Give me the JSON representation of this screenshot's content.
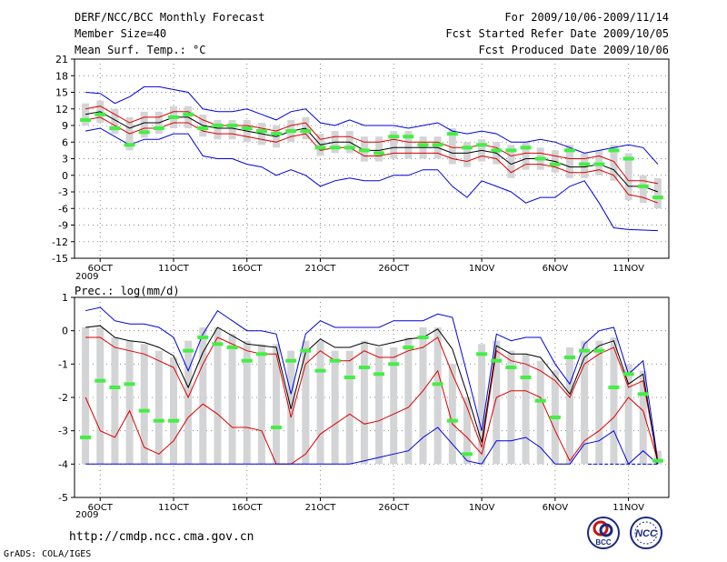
{
  "header": {
    "title": "DERF/NCC/BCC Monthly Forecast",
    "member_size": "Member Size=40",
    "variable": "Mean Surf. Temp.: °C",
    "forecast_period": "For 2009/10/06-2009/11/14",
    "started_refer": "Fcst Started Refer Date 2009/10/05",
    "produced": "Fcst Produced Date 2009/10/06"
  },
  "footer": {
    "url": "http://cmdp.ncc.cma.gov.cn",
    "credit": "GrADS: COLA/IGES",
    "logo_bcc": "BCC",
    "logo_ncc": "NCC"
  },
  "colors": {
    "box": "#d3d4d6",
    "median": "#44ee44",
    "mean": "#000000",
    "spread": "#dd0000",
    "extreme": "#0000dd",
    "grid": "#888888"
  },
  "chart_data": [
    {
      "type": "box",
      "title": "Mean Surf. Temp.: °C",
      "x_labels": [
        "6OCT",
        "11OCT",
        "16OCT",
        "21OCT",
        "26OCT",
        "1NOV",
        "6NOV",
        "11NOV"
      ],
      "x_label_days": [
        1,
        6,
        11,
        16,
        21,
        27,
        32,
        37
      ],
      "x_year_label": "2009",
      "ylim": [
        -15,
        21
      ],
      "y_ticks": [
        -15,
        -12,
        -9,
        -6,
        -3,
        0,
        3,
        6,
        9,
        12,
        15,
        18,
        21
      ],
      "days": 40,
      "series": [
        {
          "name": "max",
          "values": [
            15,
            14.8,
            13,
            14.2,
            16,
            16,
            15.5,
            15,
            12,
            11.5,
            11.5,
            12,
            11,
            10,
            11.5,
            12,
            9.5,
            9,
            10,
            9,
            9,
            9,
            8.5,
            9,
            9.5,
            8,
            7.5,
            8,
            7.5,
            6,
            6,
            6.5,
            6,
            5,
            4,
            4.5,
            5,
            5.5,
            5,
            2
          ]
        },
        {
          "name": "p_high",
          "values": [
            12,
            12.5,
            11,
            9.5,
            10.5,
            10.5,
            11.5,
            11.5,
            10,
            9,
            9,
            9,
            8.5,
            8,
            9,
            9.5,
            6.5,
            7,
            7,
            6,
            6,
            6.5,
            6,
            6,
            6,
            5,
            5,
            5.5,
            5,
            3.5,
            4,
            4,
            3.5,
            3,
            3,
            3.5,
            2.5,
            -1,
            -1,
            -1.5
          ]
        },
        {
          "name": "mean",
          "values": [
            11,
            11.5,
            10,
            8.5,
            9.5,
            9.5,
            10.5,
            10.5,
            9,
            8.5,
            8.5,
            8,
            7.5,
            7,
            8,
            8.5,
            5.5,
            6,
            6,
            4.5,
            4.5,
            5,
            5,
            5,
            5,
            4,
            4,
            4.5,
            4,
            2,
            3,
            3,
            2.5,
            1.5,
            1.5,
            2,
            1,
            -2,
            -2,
            -3
          ]
        },
        {
          "name": "p_low",
          "values": [
            10,
            10.5,
            9,
            7.5,
            8.5,
            8.5,
            9.5,
            9.5,
            8,
            7.5,
            7.5,
            7,
            6.5,
            6,
            7,
            7.5,
            4.5,
            5,
            5,
            3.5,
            3.5,
            4,
            4,
            4,
            4,
            3,
            2.5,
            3.5,
            3,
            0.5,
            2,
            2,
            1.5,
            0.5,
            0.5,
            1,
            0,
            -3.5,
            -4,
            -5
          ]
        },
        {
          "name": "min",
          "values": [
            8,
            8.5,
            7,
            5.5,
            6.5,
            6.5,
            7.5,
            7.5,
            3.5,
            3,
            3,
            2,
            1.5,
            0,
            1,
            0,
            -2,
            -1,
            -0.5,
            -1,
            -1,
            0,
            0,
            1,
            1,
            -2,
            -4,
            -1,
            -2,
            -3,
            -5,
            -4,
            -4,
            -2,
            -1,
            -5,
            -9.5,
            -9.8,
            -9.9,
            -10
          ]
        },
        {
          "name": "median",
          "values": [
            10,
            11,
            8.5,
            5.5,
            7.8,
            8.5,
            10.5,
            11,
            8.5,
            9,
            9,
            8.5,
            8,
            7.5,
            8,
            8,
            5,
            5,
            5,
            4.5,
            4,
            7,
            7,
            5.5,
            5.5,
            7.5,
            5,
            5.5,
            4.5,
            4.5,
            5,
            3,
            2,
            4.5,
            2,
            2,
            4.5,
            3,
            -2,
            -4
          ]
        }
      ]
    },
    {
      "type": "box",
      "title": "Prec.: log(mm/d)",
      "x_labels": [
        "6OCT",
        "11OCT",
        "16OCT",
        "21OCT",
        "26OCT",
        "1NOV",
        "6NOV",
        "11NOV"
      ],
      "x_label_days": [
        1,
        6,
        11,
        16,
        21,
        27,
        32,
        37
      ],
      "x_year_label": "2009",
      "ylim": [
        -5,
        1
      ],
      "y_ticks": [
        -5,
        -4,
        -3,
        -2,
        -1,
        0,
        1
      ],
      "days": 40,
      "series": [
        {
          "name": "max",
          "values": [
            0.6,
            0.7,
            0.3,
            0.2,
            0.2,
            0.1,
            -0.2,
            -1.2,
            -0.1,
            0.6,
            0.3,
            0.0,
            0.0,
            -0.1,
            -1.9,
            -0.1,
            0.3,
            0.1,
            0.1,
            0.1,
            0.1,
            0.3,
            0.3,
            0.3,
            0.5,
            0.4,
            -1.3,
            -3.0,
            -0.1,
            -0.3,
            -0.2,
            -0.2,
            -1.0,
            -1.6,
            -0.4,
            0.0,
            0.1,
            -1.3,
            -0.9,
            -3.9
          ]
        },
        {
          "name": "p_high",
          "values": [
            -0.2,
            -0.2,
            -0.5,
            -0.6,
            -0.7,
            -0.9,
            -1.1,
            -2.0,
            -1.0,
            -0.2,
            -0.4,
            -0.6,
            -0.7,
            -0.7,
            -2.6,
            -1.0,
            -0.6,
            -0.9,
            -0.9,
            -0.6,
            -0.8,
            -0.8,
            -0.6,
            -0.5,
            -0.2,
            -1.3,
            -2.3,
            -3.5,
            -0.6,
            -0.9,
            -1.0,
            -1.2,
            -1.5,
            -2.0,
            -1.0,
            -0.7,
            -0.5,
            -1.7,
            -1.5,
            -3.9
          ]
        },
        {
          "name": "p_low",
          "values": [
            -2.0,
            -3.0,
            -3.2,
            -2.4,
            -3.5,
            -3.7,
            -3.3,
            -2.6,
            -2.2,
            -2.5,
            -2.9,
            -2.9,
            -3.0,
            -4.0,
            -4.0,
            -3.7,
            -3.1,
            -2.8,
            -2.5,
            -2.8,
            -2.7,
            -2.5,
            -2.3,
            -1.8,
            -1.2,
            -2.8,
            -3.2,
            -3.7,
            -2.0,
            -1.8,
            -1.8,
            -2.0,
            -3.0,
            -3.9,
            -3.3,
            -3.0,
            -2.6,
            -2.0,
            -2.4,
            -3.9
          ]
        },
        {
          "name": "min",
          "values": [
            -4,
            -4,
            -4,
            -4,
            -4,
            -4,
            -4,
            -4,
            -4,
            -4,
            -4,
            -4,
            -4,
            -4,
            -4,
            -4,
            -4,
            -4,
            -4,
            -3.9,
            -3.8,
            -3.7,
            -3.6,
            -3.2,
            -2.9,
            -3.4,
            -3.9,
            -4,
            -3.3,
            -3.3,
            -3.2,
            -3.5,
            -4,
            -4,
            -3.4,
            -3.3,
            -3.0,
            -4,
            -3.6,
            -4
          ]
        },
        {
          "name": "median",
          "values": [
            -3.2,
            -1.5,
            -1.7,
            -1.6,
            -2.4,
            -2.7,
            -2.7,
            -0.6,
            -0.2,
            -0.4,
            -0.5,
            -0.9,
            -0.7,
            -2.9,
            -0.9,
            -0.6,
            -1.2,
            -0.9,
            -1.4,
            -1.1,
            -1.3,
            -1.0,
            -0.5,
            -0.2,
            -1.6,
            -2.7,
            -3.7,
            -0.7,
            -0.9,
            -1.1,
            -1.4,
            -2.1,
            -2.6,
            -0.8,
            -0.6,
            -0.6,
            -1.7,
            -1.3,
            -1.9,
            -3.9
          ]
        }
      ]
    }
  ]
}
